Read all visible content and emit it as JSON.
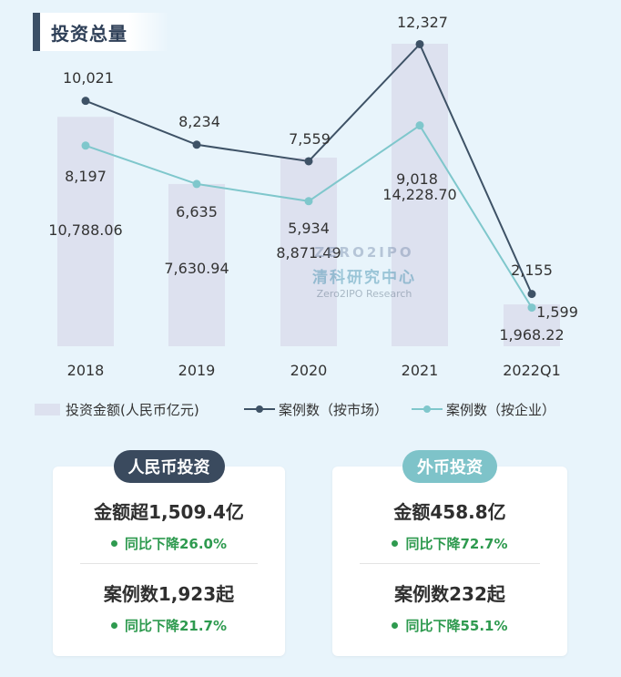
{
  "header": {
    "title": "投资总量"
  },
  "chart_data": {
    "type": "bar+line",
    "categories": [
      "2018",
      "2019",
      "2020",
      "2021",
      "2022Q1"
    ],
    "series": [
      {
        "name": "投资金额(人民币亿元)",
        "type": "bar",
        "values": [
          10788.06,
          7630.94,
          8871.49,
          14228.7,
          1968.22
        ],
        "labels": [
          "10,788.06",
          "7,630.94",
          "8,871.49",
          "14,228.70",
          "1,968.22"
        ],
        "color": "#dde1ef"
      },
      {
        "name": "案例数（按市场）",
        "type": "line",
        "values": [
          10021,
          8234,
          7559,
          12327,
          2155
        ],
        "labels": [
          "10,021",
          "8,234",
          "7,559",
          "12,327",
          "2,155"
        ],
        "color": "#3e5266"
      },
      {
        "name": "案例数（按企业）",
        "type": "line",
        "values": [
          8197,
          6635,
          5934,
          9018,
          1599
        ],
        "labels": [
          "8,197",
          "6,635",
          "5,934",
          "9,018",
          "1,599"
        ],
        "color": "#7fc7cc"
      }
    ],
    "legend_position": "bottom"
  },
  "watermark": {
    "logo": "ZERO2IPO",
    "cn": "清科研究中心",
    "en": "Zero2IPO Research"
  },
  "cards": {
    "rmb": {
      "tag": "人民币投资",
      "amount": "金额超1,509.4亿",
      "amount_change": "同比下降26.0%",
      "cases": "案例数1,923起",
      "cases_change": "同比下降21.7%"
    },
    "fx": {
      "tag": "外币投资",
      "amount": "金额458.8亿",
      "amount_change": "同比下降72.7%",
      "cases": "案例数232起",
      "cases_change": "同比下降55.1%"
    }
  },
  "colors": {
    "accent_dark": "#3a4a5e",
    "accent_teal": "#7ec3c9",
    "down_green": "#2e9a4f",
    "background": "#e8f4fb"
  }
}
